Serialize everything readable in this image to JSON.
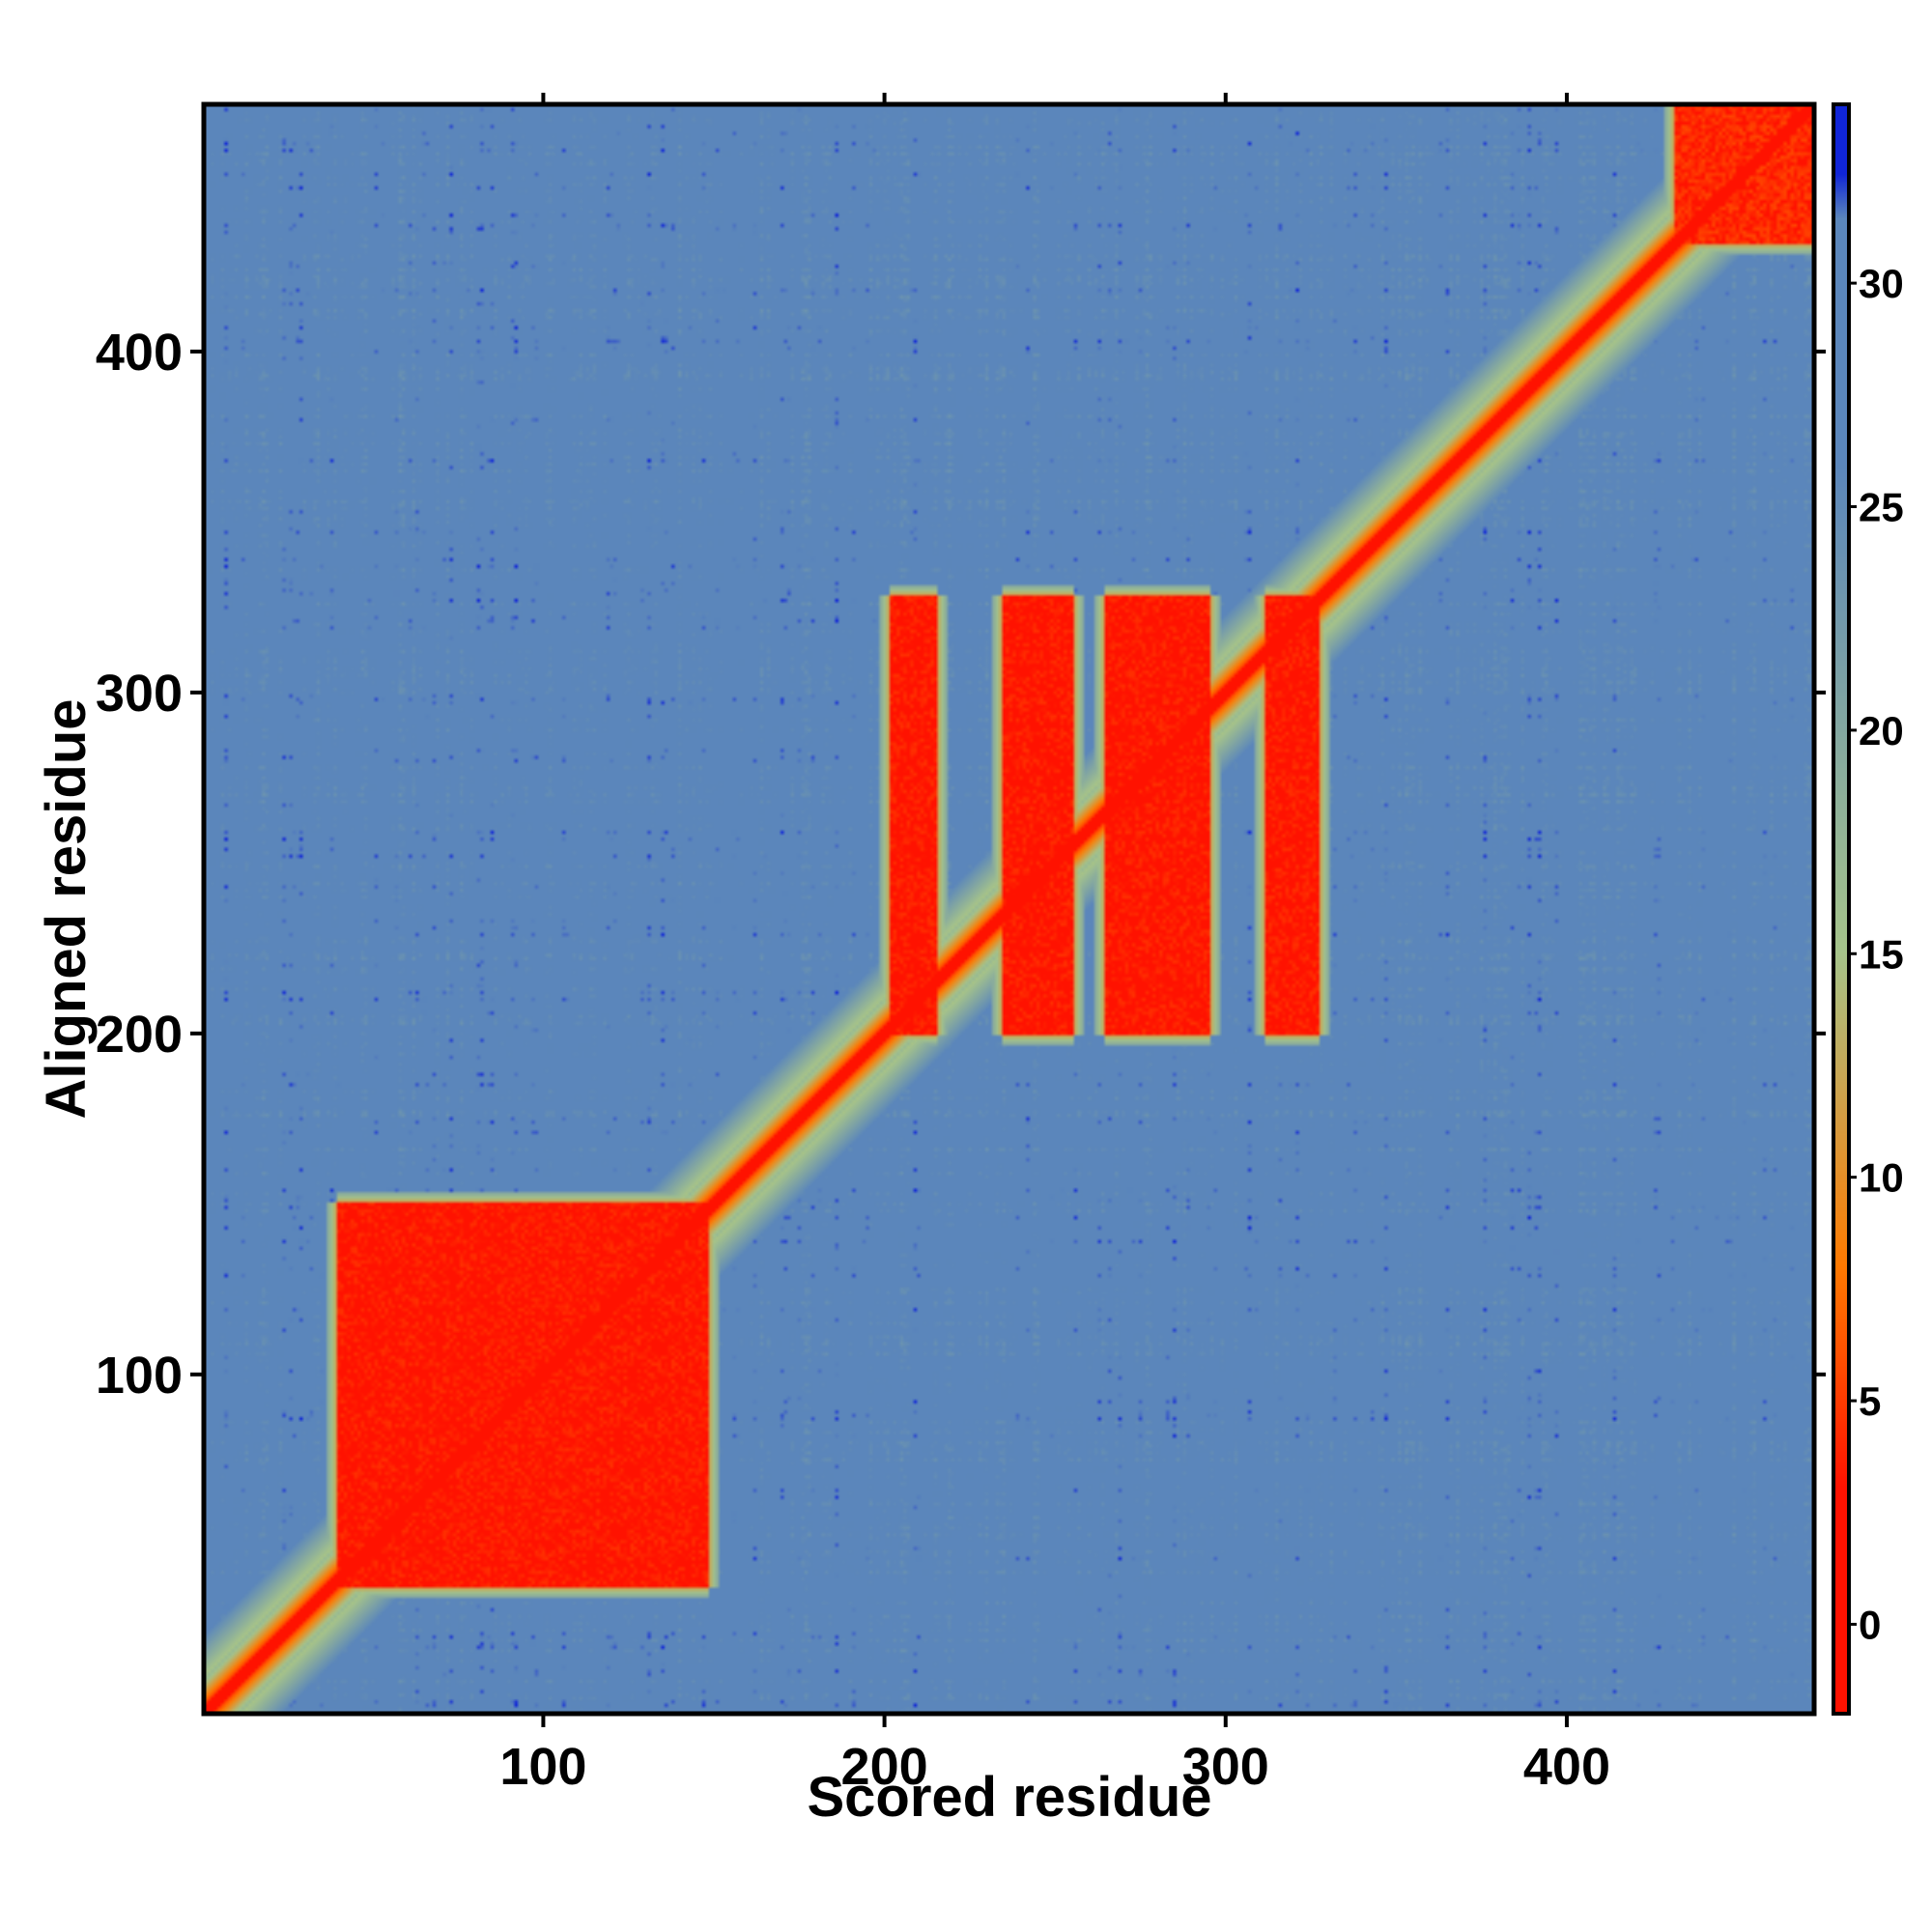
{
  "chart_data": {
    "type": "heatmap",
    "title": "",
    "xlabel": "Scored residue",
    "ylabel": "Aligned residue",
    "n_residues": 472,
    "xlim": [
      1,
      472
    ],
    "ylim": [
      1,
      472
    ],
    "xticks": [
      100,
      200,
      300,
      400
    ],
    "yticks": [
      100,
      200,
      300,
      400
    ],
    "colorbar": {
      "range": [
        -2,
        34
      ],
      "ticks": [
        0,
        5,
        10,
        15,
        20,
        25,
        30
      ],
      "colors": {
        "low": "#ff1200",
        "mid_low": "#ff7a00",
        "mid": "#a6c48a",
        "high": "#5b86bb",
        "top": "#1025d8"
      }
    },
    "grid": false,
    "legend": "colorbar-right",
    "blocks": [
      {
        "x": [
          40,
          148
        ],
        "y": [
          38,
          150
        ],
        "value": 3
      },
      {
        "x": [
          202,
          215
        ],
        "y": [
          200,
          328
        ],
        "value": 3
      },
      {
        "x": [
          235,
          255
        ],
        "y": [
          200,
          328
        ],
        "value": 3
      },
      {
        "x": [
          265,
          295
        ],
        "y": [
          200,
          328
        ],
        "value": 3
      },
      {
        "x": [
          312,
          327
        ],
        "y": [
          200,
          328
        ],
        "value": 3
      },
      {
        "x": [
          432,
          472
        ],
        "y": [
          432,
          472
        ],
        "value": 4
      }
    ],
    "diagonal_value": 1,
    "background_value": 28
  }
}
